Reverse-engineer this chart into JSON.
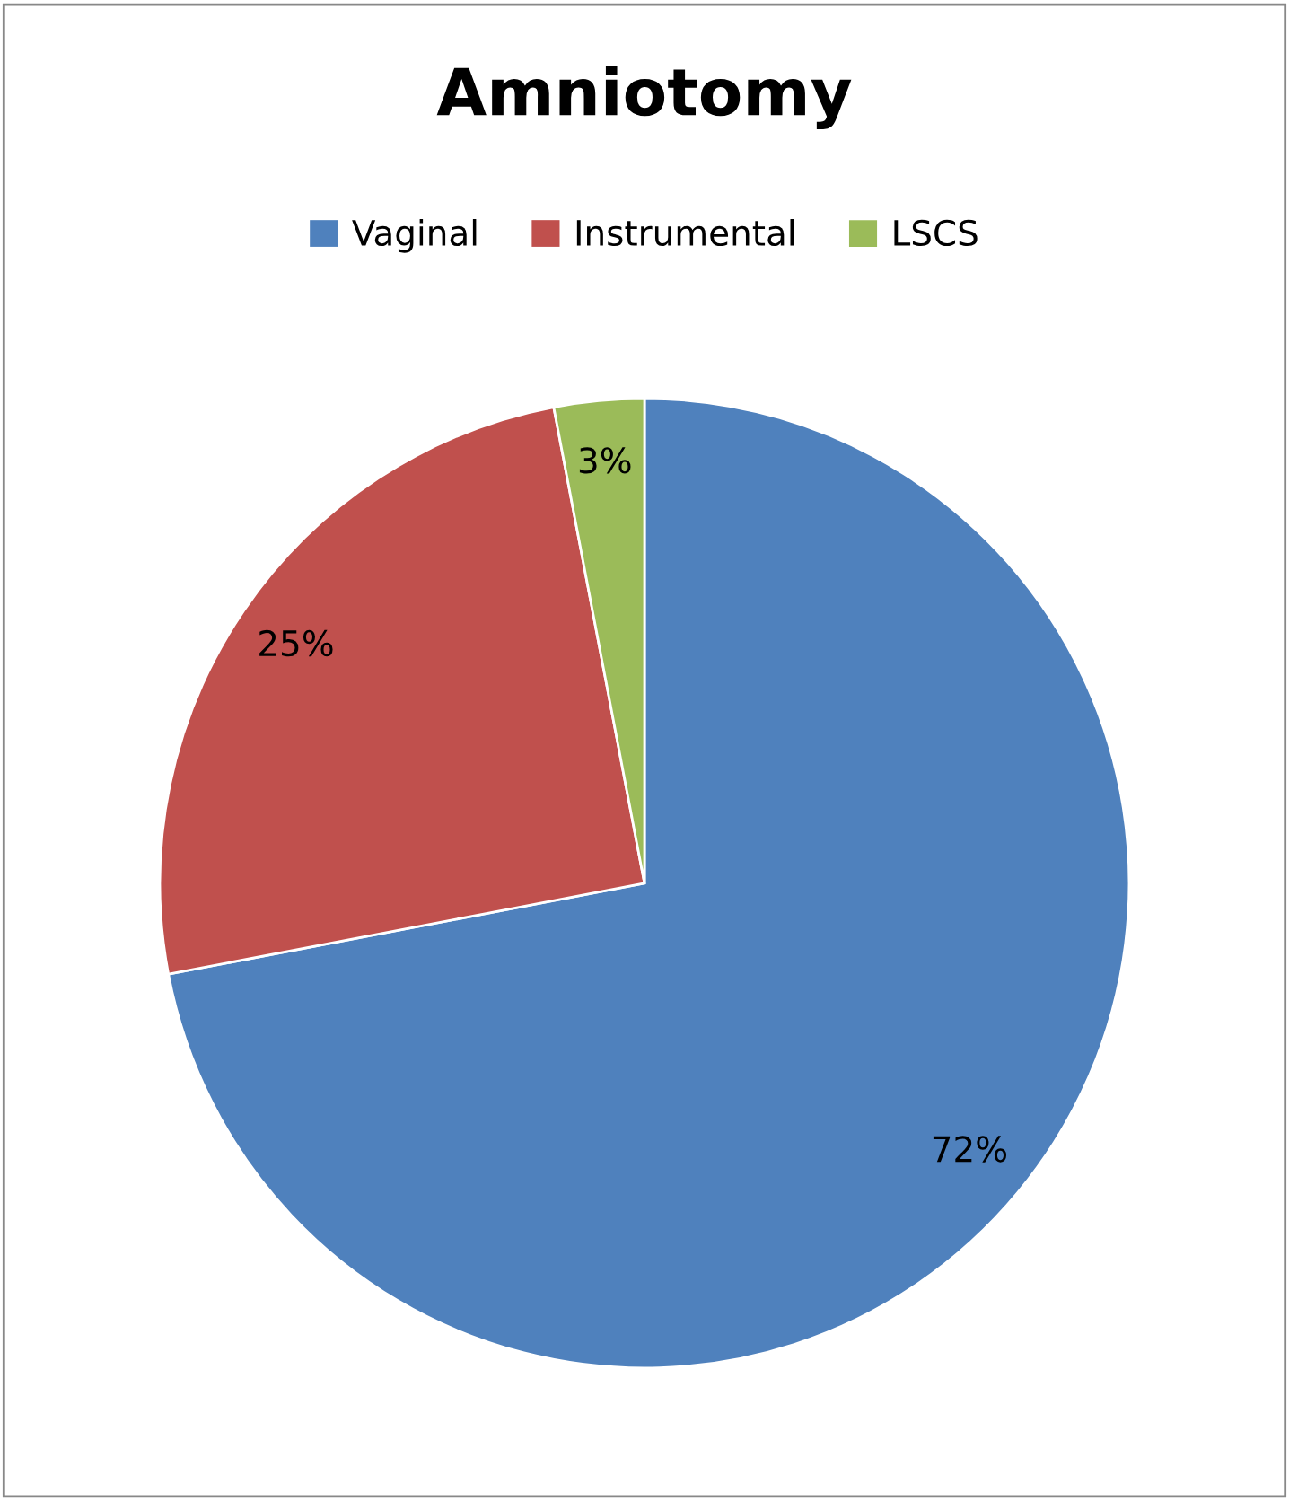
{
  "chart_data": {
    "type": "pie",
    "title": "Amniotomy",
    "categories": [
      "Vaginal",
      "Instrumental",
      "LSCS"
    ],
    "values": [
      72,
      25,
      3
    ],
    "value_labels": [
      "72%",
      "25%",
      "3%"
    ],
    "colors": [
      "#4f81bd",
      "#c0504d",
      "#9bbb59"
    ],
    "legend": "top"
  }
}
